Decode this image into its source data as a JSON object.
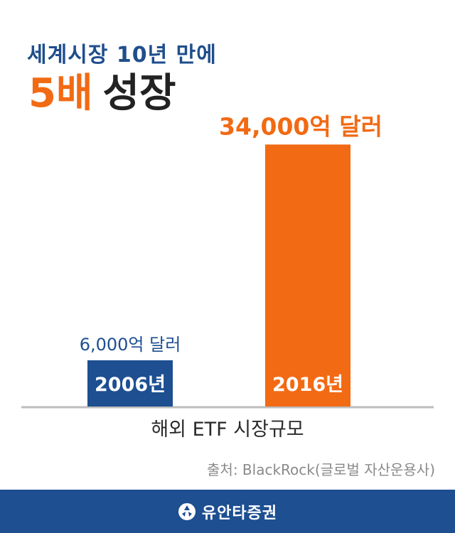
{
  "headline": {
    "line1": "세계시장 10년 만에",
    "accent": "5배",
    "rest": "성장"
  },
  "chart_data": {
    "type": "bar",
    "categories": [
      "2006년",
      "2016년"
    ],
    "values": [
      6000,
      34000
    ],
    "value_labels": [
      "6,000억 달러",
      "34,000억 달러"
    ],
    "unit": "억 달러",
    "xlabel": "해외 ETF 시장규모",
    "ylabel": "",
    "ylim": [
      0,
      38000
    ],
    "grid": false,
    "colors": [
      "#1d4f91",
      "#f26a13"
    ]
  },
  "source": "출처: BlackRock(글로벌 자산운용사)",
  "footer": {
    "brand": "유안타증권",
    "logo": "yuanta-logo-icon"
  }
}
